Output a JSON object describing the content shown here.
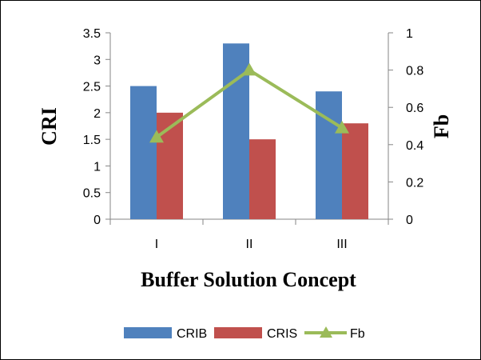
{
  "chart_data": {
    "type": "bar",
    "categories": [
      "I",
      "II",
      "III"
    ],
    "series": [
      {
        "name": "CRIB",
        "kind": "bar",
        "axis": "left",
        "values": [
          2.5,
          3.3,
          2.4
        ],
        "color": "#4f81bd"
      },
      {
        "name": "CRIS",
        "kind": "bar",
        "axis": "left",
        "values": [
          2.0,
          1.5,
          1.8
        ],
        "color": "#c0504d"
      },
      {
        "name": "Fb",
        "kind": "line",
        "axis": "right",
        "marker": "triangle",
        "values": [
          0.44,
          0.8,
          0.49
        ],
        "color": "#9bbb59"
      }
    ],
    "xlabel": "Buffer Solution Concept",
    "ylabel": "CRI",
    "y2label": "Fb",
    "ylim": [
      0,
      3.5
    ],
    "y2lim": [
      0,
      1
    ],
    "yticks": [
      "0",
      "0.5",
      "1",
      "1.5",
      "2",
      "2.5",
      "3",
      "3.5"
    ],
    "y2ticks": [
      "0",
      "0.2",
      "0.4",
      "0.6",
      "0.8",
      "1"
    ],
    "grid": false,
    "legend": "bottom"
  }
}
